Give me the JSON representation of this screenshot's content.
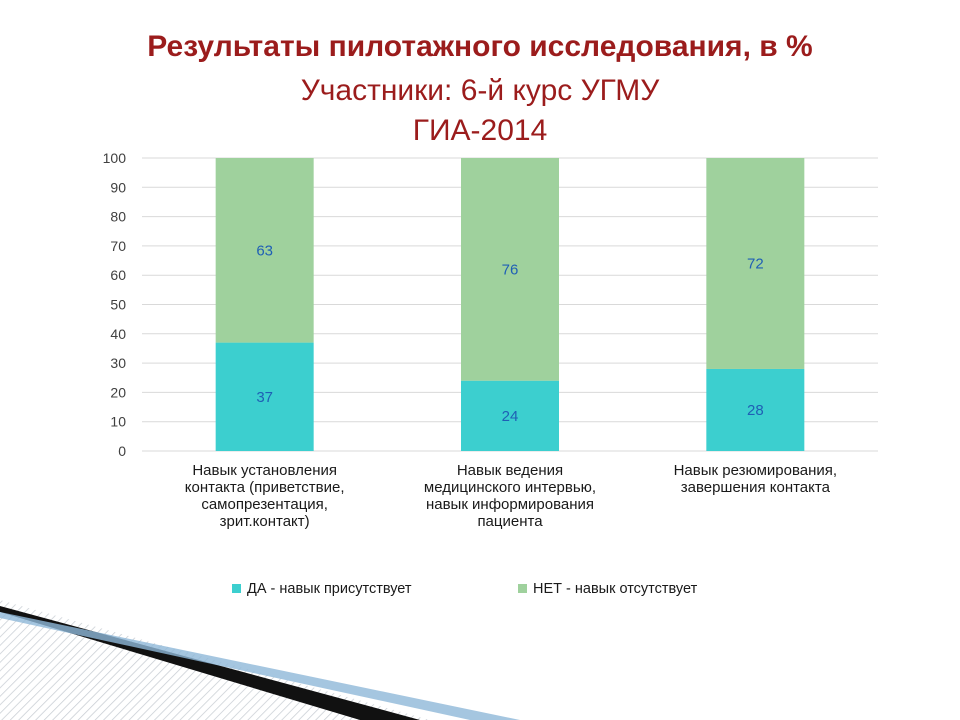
{
  "slide": {
    "title": "Результаты пилотажного исследования, в %",
    "subtitle_line1": "Участники: 6-й курс УГМУ",
    "subtitle_line2": "ГИА-2014"
  },
  "colors": {
    "title": "#9b1c1c",
    "yes": "#3ccfcf",
    "no": "#9fd19d",
    "label": "#1f5fb5",
    "grid": "#d9d9d9"
  },
  "chart_data": {
    "type": "bar",
    "stacked": true,
    "categories": [
      [
        "Навык установления",
        "контакта (приветствие,",
        "самопрезентация,",
        "зрит.контакт)"
      ],
      [
        "Навык ведения",
        "медицинского интервью,",
        "навык информирования",
        "пациента"
      ],
      [
        "Навык резюмирования,",
        "завершения контакта"
      ]
    ],
    "series": [
      {
        "name": "ДА - навык присутствует",
        "values": [
          37,
          24,
          28
        ]
      },
      {
        "name": "НЕТ - навык отсутствует",
        "values": [
          63,
          76,
          72
        ]
      }
    ],
    "ylim": [
      0,
      100
    ],
    "yticks": [
      0,
      10,
      20,
      30,
      40,
      50,
      60,
      70,
      80,
      90,
      100
    ],
    "grid": true,
    "legend": "bottom"
  }
}
